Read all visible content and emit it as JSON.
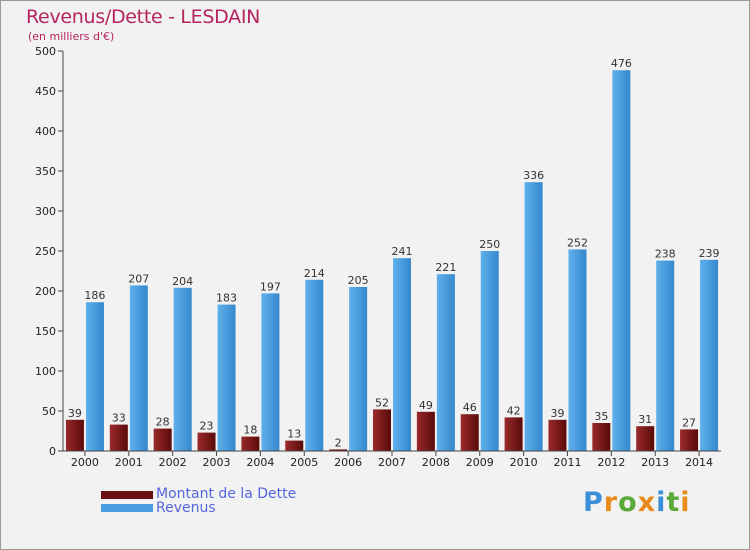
{
  "title": "Revenus/Dette - LESDAIN",
  "subtitle": "(en milliers d'€)",
  "colors": {
    "dette": "#7a1616",
    "revenus": "#4a9fe0",
    "title": "#b5245f"
  },
  "logo": {
    "text": "Proxiti",
    "letters": [
      {
        "ch": "P",
        "color": "#3a8fd8"
      },
      {
        "ch": "r",
        "color": "#e98b1c"
      },
      {
        "ch": "o",
        "color": "#5aaa3a"
      },
      {
        "ch": "x",
        "color": "#e98b1c"
      },
      {
        "ch": "i",
        "color": "#3a8fd8"
      },
      {
        "ch": "t",
        "color": "#5aaa3a"
      },
      {
        "ch": "i",
        "color": "#e98b1c"
      }
    ]
  },
  "chart_data": {
    "type": "bar",
    "title": "Revenus/Dette - LESDAIN",
    "subtitle": "(en milliers d'€)",
    "categories": [
      "2000",
      "2001",
      "2002",
      "2003",
      "2004",
      "2005",
      "2006",
      "2007",
      "2008",
      "2009",
      "2010",
      "2011",
      "2012",
      "2013",
      "2014"
    ],
    "series": [
      {
        "name": "Montant de la Dette",
        "values": [
          39,
          33,
          28,
          23,
          18,
          13,
          2,
          52,
          49,
          46,
          42,
          39,
          35,
          31,
          27
        ]
      },
      {
        "name": "Revenus",
        "values": [
          186,
          207,
          204,
          183,
          197,
          214,
          205,
          241,
          221,
          250,
          336,
          252,
          476,
          238,
          239
        ]
      }
    ],
    "ylim": [
      0,
      500
    ],
    "yticks": [
      0,
      50,
      100,
      150,
      200,
      250,
      300,
      350,
      400,
      450,
      500
    ],
    "grid": false,
    "legend_position": "bottom-left"
  }
}
